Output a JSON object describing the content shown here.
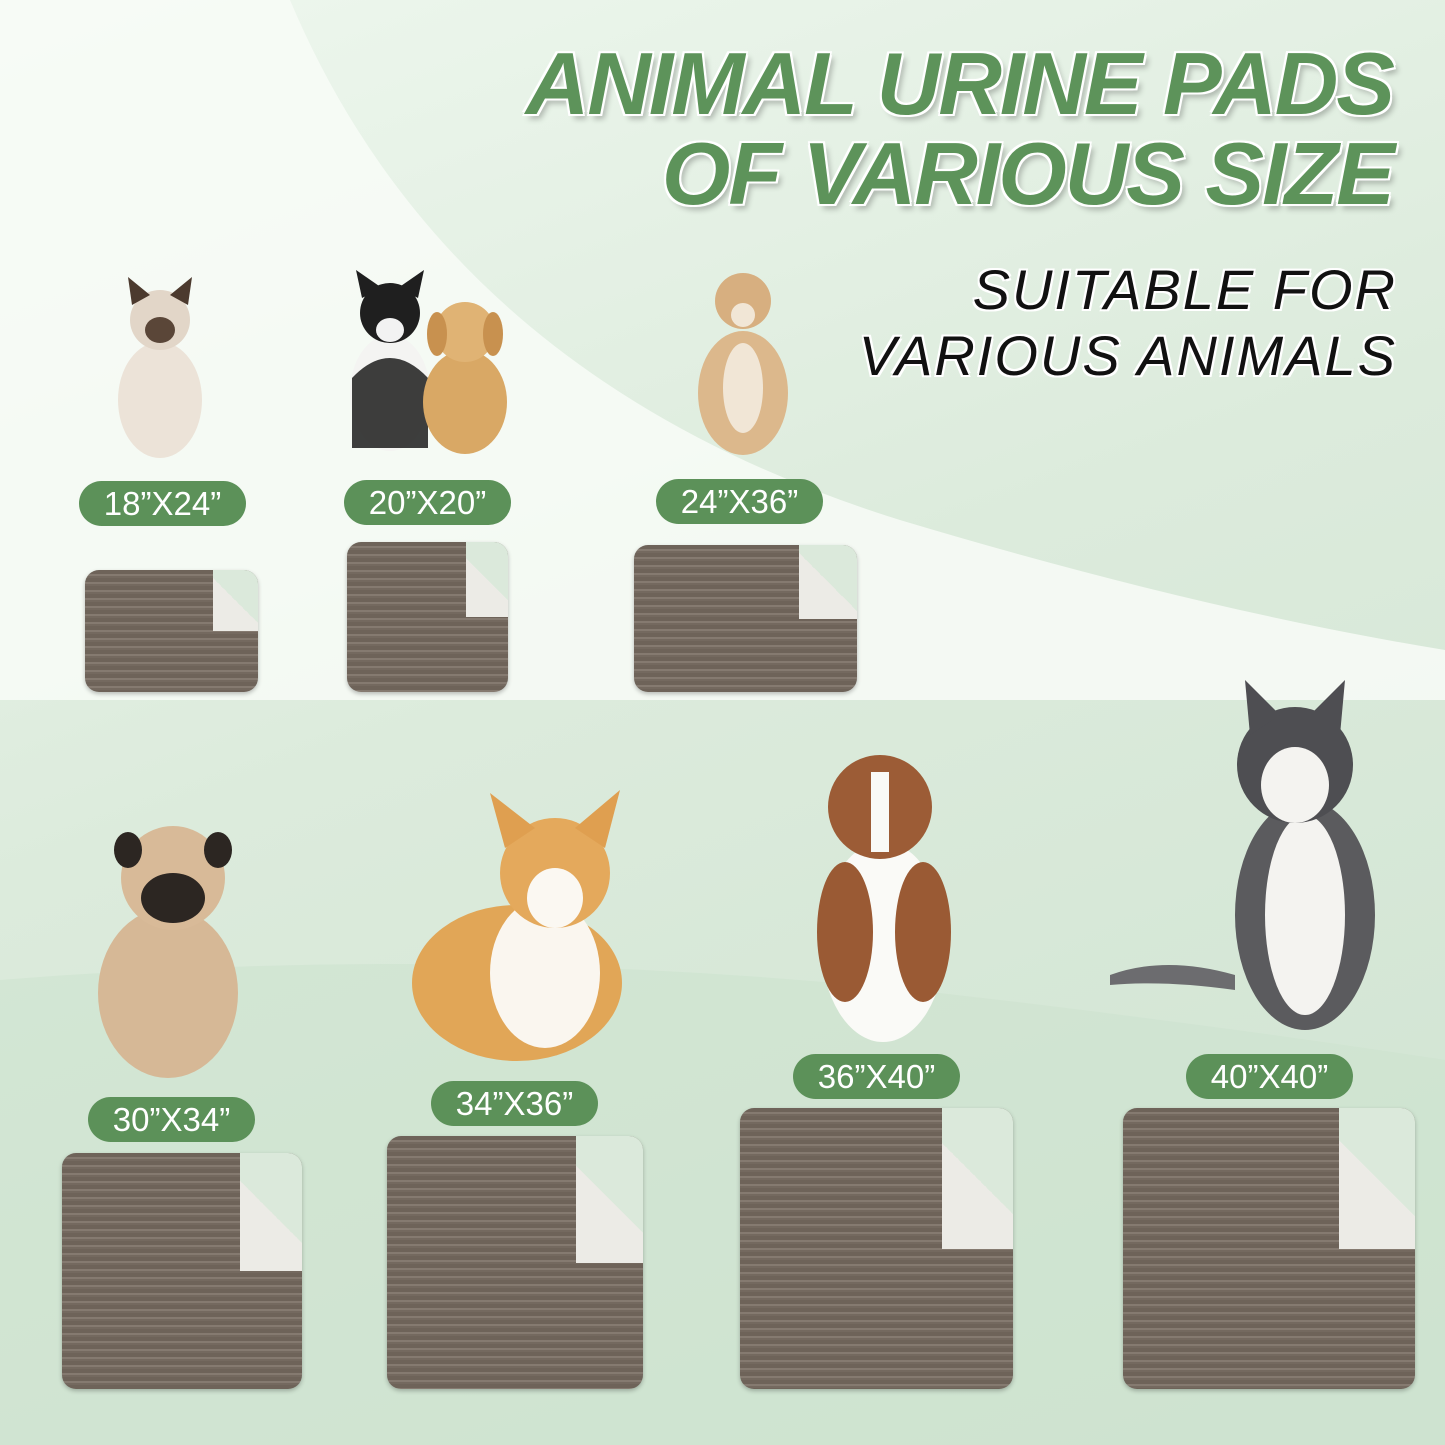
{
  "headline": {
    "line1": "ANIMAL URINE PADS",
    "line2": "OF VARIOUS SIZE"
  },
  "subheadline": {
    "line1": "SUITABLE FOR",
    "line2": "VARIOUS ANIMALS"
  },
  "colors": {
    "accent_green": "#5c9159",
    "pad_brown": "#74695f",
    "background": "#dcebdc"
  },
  "sizes": [
    {
      "label": "18”X24”",
      "animal": "siamese-cat"
    },
    {
      "label": "20”X20”",
      "animal": "cat-and-puppy"
    },
    {
      "label": "24”X36”",
      "animal": "mixed-breed-dog"
    },
    {
      "label": "30”X34”",
      "animal": "pug"
    },
    {
      "label": "34”X36”",
      "animal": "corgi"
    },
    {
      "label": "36”X40”",
      "animal": "australian-shepherd"
    },
    {
      "label": "40”X40”",
      "animal": "husky"
    }
  ]
}
